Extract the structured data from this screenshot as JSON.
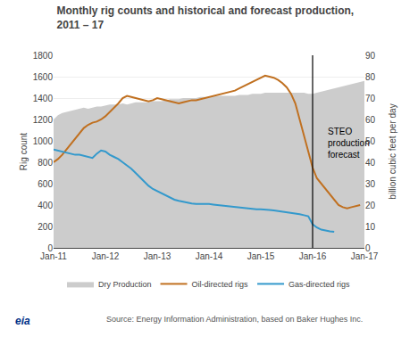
{
  "chart_data": {
    "type": "line",
    "title": "Monthly rig counts and historical and forecast production,\n2011 – 17",
    "ylabel": "Rig count",
    "y2label": "billion cubic feet per day",
    "source": "Source: Energy Information Administration, based on Baker Hughes Inc.",
    "logo": "eia",
    "categories": [
      "Jan-11",
      null,
      null,
      null,
      null,
      null,
      null,
      null,
      null,
      null,
      null,
      null,
      "Jan-12",
      null,
      null,
      null,
      null,
      null,
      null,
      null,
      null,
      null,
      null,
      null,
      "Jan-13",
      null,
      null,
      null,
      null,
      null,
      null,
      null,
      null,
      null,
      null,
      null,
      "Jan-14",
      null,
      null,
      null,
      null,
      null,
      null,
      null,
      null,
      null,
      null,
      null,
      "Jan-15",
      null,
      null,
      null,
      null,
      null,
      null,
      null,
      null,
      null,
      null,
      null,
      "Jan-16",
      null,
      null,
      null,
      null,
      null,
      null,
      null,
      null,
      null,
      null,
      null,
      "Jan-17"
    ],
    "ylim": [
      0,
      1800
    ],
    "yticks": [
      0,
      200,
      400,
      600,
      800,
      1000,
      1200,
      1400,
      1600,
      1800
    ],
    "y2lim": [
      0,
      90
    ],
    "y2ticks": [
      0,
      10,
      20,
      30,
      40,
      50,
      60,
      70,
      80,
      90
    ],
    "grid": true,
    "legend": "bottom",
    "vlines": [
      {
        "x": 60
      }
    ],
    "annotations": [
      {
        "text": "STEO\nproduction\nforecast",
        "x": 63,
        "y": 1150
      }
    ],
    "series": [
      {
        "name": "Dry Production",
        "type": "area",
        "axis": "y2",
        "color": "#cccccc",
        "values": [
          60,
          62,
          63,
          63.5,
          64,
          64.5,
          65,
          65.5,
          65,
          65.5,
          66,
          66,
          66.5,
          67,
          67,
          67,
          67.5,
          67,
          67.5,
          68,
          68,
          68,
          68,
          68.5,
          68.5,
          68.5,
          69,
          69.5,
          69.5,
          69.5,
          70,
          70,
          70,
          70,
          70.5,
          70.5,
          70.5,
          71,
          71,
          71,
          71,
          71,
          71,
          71.5,
          71.5,
          71.5,
          72,
          72,
          72,
          72.5,
          72.5,
          72.5,
          72.5,
          72.5,
          72.5,
          72.5,
          72.5,
          72.5,
          72.5,
          72,
          72,
          72.5,
          73,
          73.5,
          74,
          74.5,
          75,
          75.5,
          76,
          76.5,
          77,
          77.5,
          78
        ]
      },
      {
        "name": "Oil-directed rigs",
        "type": "line",
        "color": "#c07020",
        "values": [
          800,
          830,
          870,
          920,
          970,
          1020,
          1070,
          1120,
          1150,
          1170,
          1180,
          1200,
          1230,
          1270,
          1310,
          1350,
          1400,
          1420,
          1410,
          1400,
          1390,
          1380,
          1370,
          1380,
          1400,
          1390,
          1380,
          1370,
          1360,
          1350,
          1360,
          1370,
          1380,
          1380,
          1390,
          1400,
          1410,
          1420,
          1430,
          1440,
          1450,
          1460,
          1470,
          1490,
          1510,
          1530,
          1550,
          1570,
          1590,
          1610,
          1600,
          1590,
          1570,
          1540,
          1500,
          1440,
          1350,
          1200,
          1050,
          900,
          750,
          650,
          600,
          550,
          500,
          450,
          400,
          380,
          370,
          380,
          390,
          400,
          null
        ]
      },
      {
        "name": "Gas-directed rigs",
        "type": "line",
        "color": "#3399cc",
        "values": [
          920,
          910,
          900,
          890,
          880,
          870,
          870,
          860,
          850,
          840,
          880,
          910,
          900,
          870,
          850,
          830,
          800,
          770,
          740,
          700,
          660,
          620,
          580,
          550,
          530,
          510,
          490,
          470,
          450,
          440,
          430,
          420,
          415,
          410,
          410,
          415,
          410,
          405,
          400,
          395,
          390,
          385,
          380,
          375,
          375,
          370,
          365,
          360,
          360,
          360,
          355,
          350,
          345,
          340,
          335,
          330,
          325,
          315,
          305,
          295,
          220,
          190,
          170,
          160,
          155,
          150,
          null,
          null,
          null,
          null,
          null,
          null,
          null
        ]
      }
    ]
  }
}
